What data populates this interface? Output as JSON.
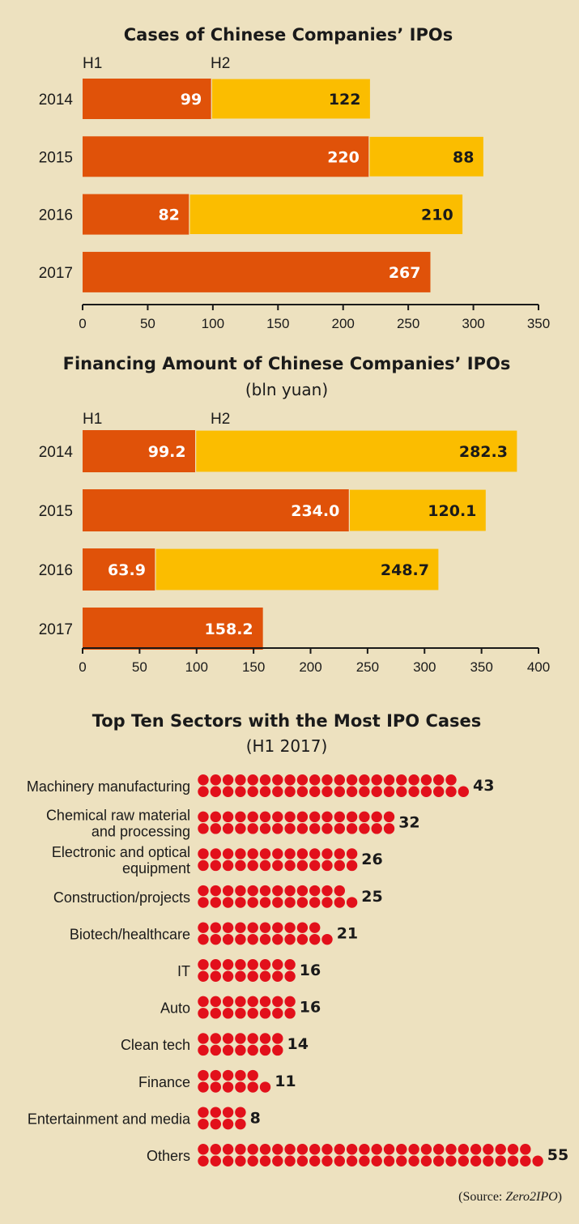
{
  "colors": {
    "h1": "#e05209",
    "h2": "#fbbd00",
    "dot": "#e2101b",
    "axis": "#1a1a1a",
    "background": "#ede1bf"
  },
  "chart_data": [
    {
      "type": "bar",
      "stacked": true,
      "orientation": "horizontal",
      "title": "Cases of Chinese Companies’ IPOs",
      "subtitle": "",
      "categories": [
        "2014",
        "2015",
        "2016",
        "2017"
      ],
      "series": [
        {
          "name": "H1",
          "values": [
            99,
            220,
            82,
            267
          ]
        },
        {
          "name": "H2",
          "values": [
            122,
            88,
            210,
            null
          ]
        }
      ],
      "xlim": [
        0,
        350
      ],
      "xticks": [
        0,
        50,
        100,
        150,
        200,
        250,
        300,
        350
      ],
      "legend": "top-left"
    },
    {
      "type": "bar",
      "stacked": true,
      "orientation": "horizontal",
      "title": "Financing Amount of Chinese Companies’ IPOs",
      "subtitle": "(bln yuan)",
      "categories": [
        "2014",
        "2015",
        "2016",
        "2017"
      ],
      "series": [
        {
          "name": "H1",
          "values": [
            99.2,
            234.0,
            63.9,
            158.2
          ]
        },
        {
          "name": "H2",
          "values": [
            282.3,
            120.1,
            248.7,
            null
          ]
        }
      ],
      "xlim": [
        0,
        400
      ],
      "xticks": [
        0,
        50,
        100,
        150,
        200,
        250,
        300,
        350,
        400
      ],
      "legend": "top-left"
    },
    {
      "type": "bar",
      "representation": "dot-pictogram",
      "title": "Top Ten Sectors with the Most IPO Cases",
      "subtitle": "(H1 2017)",
      "categories": [
        [
          "Machinery manufacturing"
        ],
        [
          "Chemical raw material",
          "and processing"
        ],
        [
          "Electronic and optical",
          "equipment"
        ],
        [
          "Construction/projects"
        ],
        [
          "Biotech/healthcare"
        ],
        [
          "IT"
        ],
        [
          "Auto"
        ],
        [
          "Clean tech"
        ],
        [
          "Finance"
        ],
        [
          "Entertainment and media"
        ],
        [
          "Others"
        ]
      ],
      "values": [
        43,
        32,
        26,
        25,
        21,
        16,
        16,
        14,
        11,
        8,
        55
      ]
    }
  ],
  "source": {
    "prefix": "(Source: ",
    "name": "Zero2IPO",
    "suffix": ")"
  }
}
